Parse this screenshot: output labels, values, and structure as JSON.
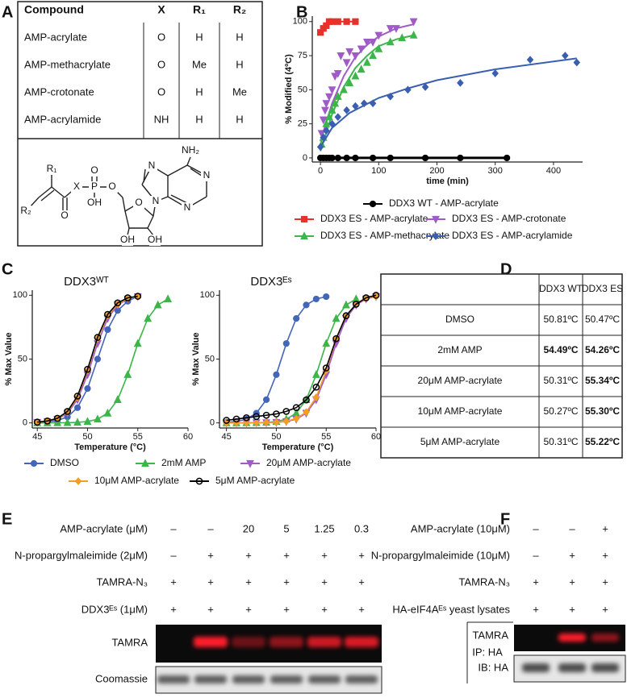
{
  "figure_labels": [
    "A",
    "B",
    "C",
    "D",
    "E",
    "F"
  ],
  "panel_a": {
    "header": [
      "Compound",
      "X",
      "R₁",
      "R₂"
    ],
    "rows": [
      [
        "AMP-acrylate",
        "O",
        "H",
        "H"
      ],
      [
        "AMP-methacrylate",
        "O",
        "Me",
        "H"
      ],
      [
        "AMP-crotonate",
        "O",
        "H",
        "Me"
      ],
      [
        "AMP-acrylamide",
        "NH",
        "H",
        "H"
      ]
    ],
    "structure_atoms": [
      "NH₂",
      "N",
      "N",
      "N",
      "N",
      "O",
      "OH",
      "OH",
      "O",
      "P",
      "O",
      "OH",
      "X",
      "O",
      "R₁",
      "R₂"
    ]
  },
  "chart_data": [
    {
      "type": "scatter",
      "ylabel": "% Modified (4ºC)",
      "xlabel": "time (min)",
      "xlim": [
        -14,
        450
      ],
      "ylim": [
        -3,
        104
      ],
      "xticks": [
        0,
        100,
        200,
        300,
        400
      ],
      "yticks": [
        0,
        25,
        50,
        75,
        100
      ],
      "legend": "bottom",
      "series": [
        {
          "name": "DDX3 WT - AMP-acrylate",
          "color": "#000000",
          "marker": "circle",
          "x": [
            0,
            5,
            10,
            15,
            20,
            30,
            45,
            60,
            90,
            120,
            180,
            240,
            320
          ],
          "values": [
            0,
            0,
            0,
            0,
            0,
            0,
            0,
            0,
            0,
            0,
            0,
            0,
            0
          ],
          "fit_x": [
            0,
            320
          ],
          "fit_values": [
            0,
            0
          ]
        },
        {
          "name": "DDX3 ES - AMP-acrylate",
          "color": "#e8312a",
          "marker": "square",
          "x": [
            0,
            5,
            10,
            15,
            20,
            30,
            45,
            60
          ],
          "values": [
            92,
            95,
            97,
            100,
            100,
            100,
            100,
            100
          ],
          "fit_x": [
            0,
            5,
            10,
            20,
            60
          ],
          "fit_values": [
            92,
            96,
            98,
            100,
            100
          ]
        },
        {
          "name": "DDX3 ES - AMP-crotonate",
          "color": "#a05cc6",
          "marker": "tridown",
          "x": [
            2,
            5,
            8,
            10,
            15,
            20,
            25,
            30,
            35,
            45,
            50,
            60,
            70,
            80,
            90,
            100,
            120,
            130,
            160
          ],
          "values": [
            18,
            28,
            35,
            40,
            45,
            50,
            60,
            62,
            75,
            70,
            78,
            75,
            80,
            85,
            85,
            90,
            95,
            95,
            100
          ],
          "fit_x": [
            0,
            20,
            40,
            60,
            80,
            100,
            130,
            160
          ],
          "fit_values": [
            12,
            40,
            60,
            74,
            83,
            89,
            95,
            98
          ]
        },
        {
          "name": "DDX3 ES - AMP-methacrylate",
          "color": "#3cb54a",
          "marker": "tri",
          "x": [
            2,
            5,
            10,
            15,
            20,
            25,
            30,
            40,
            50,
            60,
            70,
            80,
            90,
            100,
            120,
            140,
            160
          ],
          "values": [
            10,
            15,
            25,
            30,
            35,
            40,
            45,
            50,
            55,
            60,
            65,
            70,
            75,
            80,
            85,
            88,
            90
          ],
          "fit_x": [
            0,
            20,
            40,
            60,
            80,
            100,
            130,
            160
          ],
          "fit_values": [
            5,
            32,
            52,
            66,
            75,
            82,
            87,
            90
          ]
        },
        {
          "name": "DDX3 ES - AMP-acrylamide",
          "color": "#3a5fb0",
          "marker": "diamond",
          "x": [
            0,
            5,
            10,
            20,
            30,
            45,
            60,
            75,
            90,
            120,
            150,
            180,
            240,
            300,
            360,
            420,
            440
          ],
          "values": [
            8,
            15,
            20,
            25,
            30,
            35,
            38,
            40,
            40,
            45,
            50,
            52,
            55,
            62,
            72,
            75,
            70
          ],
          "fit_x": [
            0,
            20,
            50,
            100,
            150,
            200,
            300,
            440
          ],
          "fit_values": [
            8,
            22,
            33,
            44,
            51,
            57,
            65,
            73
          ]
        }
      ]
    },
    {
      "type": "line",
      "title": "DDX3ᵂᵀ",
      "ylabel": "% Max Value",
      "xlabel": "Temperature (°C)",
      "xlim": [
        44.5,
        60
      ],
      "ylim": [
        -4,
        104
      ],
      "xticks": [
        45,
        50,
        55,
        60
      ],
      "yticks": [
        0,
        50,
        100
      ],
      "legend": "bottom",
      "x": [
        45,
        46,
        47,
        48,
        49,
        50,
        51,
        52,
        53,
        54,
        55,
        56,
        57,
        58
      ],
      "series": [
        {
          "name": "DMSO",
          "color": "#4466b9",
          "marker": "circle",
          "values": [
            0.2,
            0.7,
            1.8,
            4.7,
            11.9,
            26.9,
            50,
            73.1,
            88.1,
            95.3,
            99.3,
            null,
            null,
            null
          ]
        },
        {
          "name": "2mM AMP",
          "color": "#3cb54a",
          "marker": "tri",
          "values": [
            0,
            0,
            0.1,
            0.2,
            0.4,
            1.1,
            2.9,
            7.6,
            18.2,
            37.8,
            62.2,
            81.8,
            92.4,
            97.1
          ]
        },
        {
          "name": "20μM AMP-acrylate",
          "color": "#a05cc6",
          "marker": "tridown",
          "values": [
            0.4,
            1.1,
            2.9,
            7.6,
            18.2,
            37.8,
            62.2,
            81.8,
            92.4,
            97.1,
            98.9,
            null,
            null,
            null
          ]
        },
        {
          "name": "10μM AMP-acrylate",
          "color": "#f39c26",
          "marker": "diamond",
          "values": [
            0.5,
            1.3,
            3.3,
            8.5,
            20,
            41,
            66,
            84,
            93,
            97.5,
            99,
            null,
            null,
            null
          ]
        },
        {
          "name": "5μM AMP-acrylate",
          "color": "#000000",
          "marker": "ocircle",
          "values": [
            0.6,
            1.5,
            3.6,
            9,
            21,
            42,
            67,
            85,
            94,
            98,
            99.2,
            null,
            null,
            null
          ]
        }
      ]
    },
    {
      "type": "line",
      "title": "DDX3ᴱˢ",
      "ylabel": "% Max Value",
      "xlabel": "Temperature (°C)",
      "xlim": [
        44.3,
        60
      ],
      "ylim": [
        -4,
        104
      ],
      "xticks": [
        45,
        50,
        55,
        60
      ],
      "yticks": [
        0,
        50,
        100
      ],
      "x": [
        45,
        46,
        47,
        48,
        49,
        50,
        51,
        52,
        53,
        54,
        55,
        56,
        57,
        58,
        59,
        60
      ],
      "series": [
        {
          "color": "#4466b9",
          "marker": "circle",
          "values": [
            0.4,
            1.1,
            2.9,
            7.6,
            18.2,
            37.8,
            62.2,
            81.8,
            92.4,
            97.1,
            98.9,
            null,
            null,
            null,
            null,
            null
          ]
        },
        {
          "color": "#3cb54a",
          "marker": "tri",
          "values": [
            0,
            0,
            0.1,
            0.2,
            0.4,
            1.1,
            2.9,
            7.6,
            18.2,
            37.8,
            62.2,
            81.8,
            92.4,
            97.1,
            null,
            null
          ]
        },
        {
          "color": "#a05cc6",
          "marker": "tridown",
          "values": [
            0,
            0,
            0.1,
            0.2,
            0.2,
            0.4,
            1.1,
            2.9,
            7.6,
            18.2,
            37.8,
            62.2,
            81.8,
            92.4,
            97.1,
            98.9
          ]
        },
        {
          "color": "#f39c26",
          "marker": "diamond",
          "values": [
            0,
            0,
            0.1,
            0.2,
            0.3,
            0.5,
            1.3,
            3.3,
            8.5,
            20,
            41,
            66,
            84,
            93,
            97.5,
            99
          ]
        },
        {
          "color": "#000000",
          "marker": "ocircle",
          "values": [
            2,
            3,
            4,
            5,
            6,
            7,
            9,
            12,
            18,
            28,
            43,
            66,
            84,
            93,
            98,
            100
          ]
        }
      ]
    }
  ],
  "panel_d": {
    "header": [
      "DDX3 WT",
      "DDX3 ES"
    ],
    "rows": [
      [
        "DMSO",
        "50.81ºC",
        "50.47ºC"
      ],
      [
        "2mM AMP",
        "54.49ºC",
        "54.26ºC"
      ],
      [
        "20μM AMP-acrylate",
        "50.31ºC",
        "55.34ºC"
      ],
      [
        "10μM AMP-acrylate",
        "50.27ºC",
        "55.30ºC"
      ],
      [
        "5μM AMP-acrylate",
        "50.31ºC",
        "55.22ºC"
      ]
    ]
  },
  "panel_e": {
    "rows": [
      {
        "label": "AMP-acrylate (μM)",
        "lanes": [
          "–",
          "–",
          "20",
          "5",
          "1.25",
          "0.3"
        ]
      },
      {
        "label": "N-propargylmaleimide (2μM)",
        "lanes": [
          "–",
          "+",
          "+",
          "+",
          "+",
          "+"
        ]
      },
      {
        "label": "TAMRA-N₃",
        "lanes": [
          "+",
          "+",
          "+",
          "+",
          "+",
          "+"
        ]
      },
      {
        "label": "DDX3ᴱˢ (1μM)",
        "lanes": [
          "+",
          "+",
          "+",
          "+",
          "+",
          "+"
        ]
      }
    ],
    "gel_labels": [
      "TAMRA",
      "Coomassie"
    ]
  },
  "panel_f": {
    "rows": [
      {
        "label": "AMP-acrylate (10μM)",
        "lanes": [
          "–",
          "–",
          "+"
        ]
      },
      {
        "label": "N-propargylmaleimide (10μM)",
        "lanes": [
          "–",
          "+",
          "+"
        ]
      },
      {
        "label": "TAMRA-N₃",
        "lanes": [
          "+",
          "+",
          "+"
        ]
      },
      {
        "label": "HA-eIF4Aᴱˢ yeast lysates",
        "lanes": [
          "+",
          "+",
          "+"
        ]
      }
    ],
    "gel_labels": [
      "TAMRA",
      "IP: HA",
      "IB: HA"
    ]
  }
}
